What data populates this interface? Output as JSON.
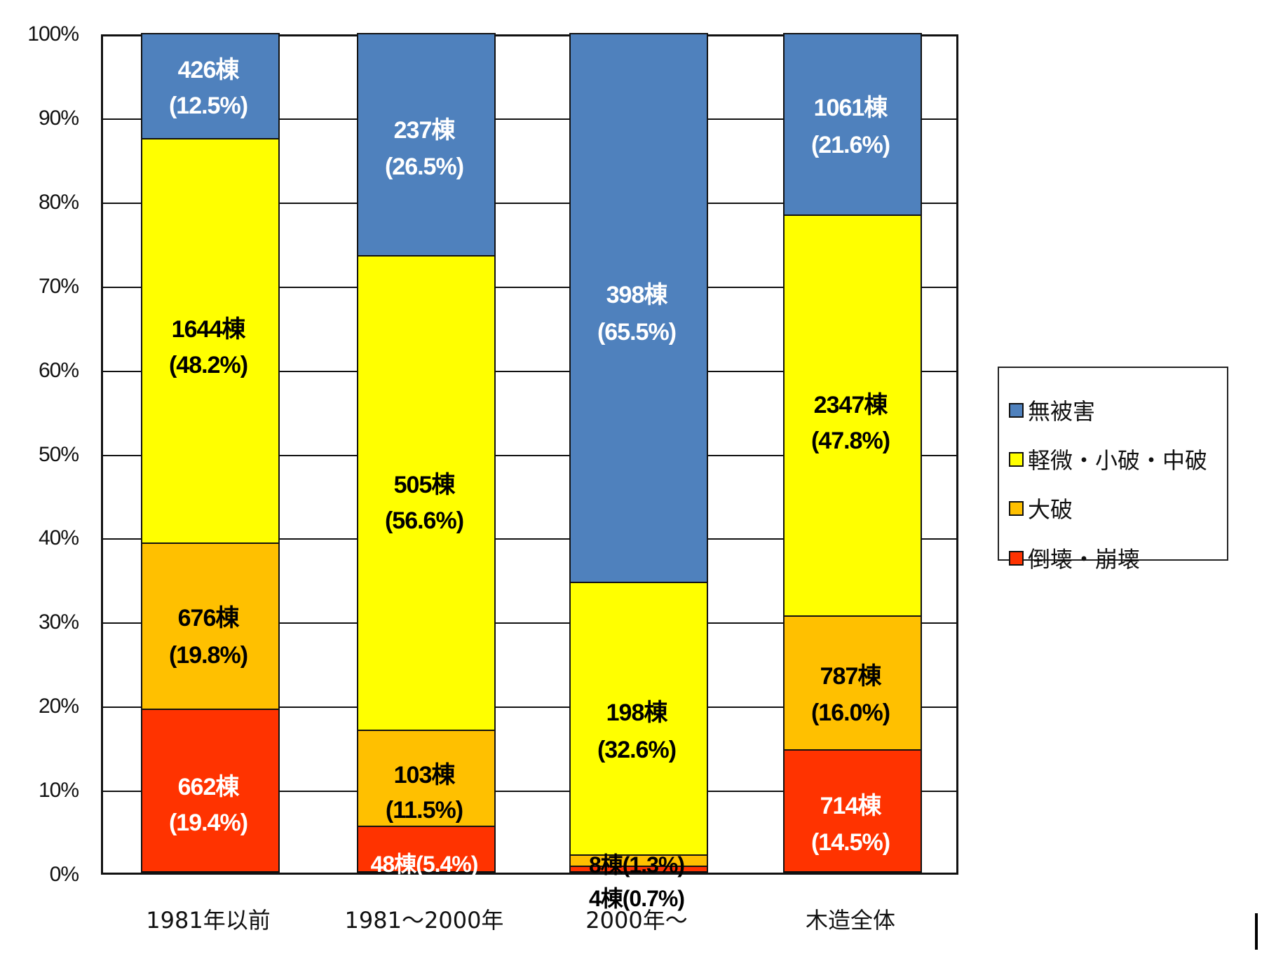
{
  "chart_data": {
    "type": "bar",
    "stacked": true,
    "normalized_percent": true,
    "title": "",
    "xlabel": "",
    "ylabel": "",
    "ylim": [
      0,
      100
    ],
    "y_ticks": [
      "0%",
      "10%",
      "20%",
      "30%",
      "40%",
      "50%",
      "60%",
      "70%",
      "80%",
      "90%",
      "100%"
    ],
    "grid": true,
    "legend_position": "right",
    "categories": [
      "1981年以前",
      "1981～2000年",
      "2000年～",
      "木造全体"
    ],
    "series": [
      {
        "name": "倒壊・崩壊",
        "color": "#FF3300",
        "counts": [
          662,
          48,
          4,
          714
        ],
        "percent": [
          19.4,
          5.4,
          0.7,
          14.5
        ],
        "labels": [
          "662棟",
          "48棟",
          "4棟",
          "714棟"
        ],
        "pct_labels": [
          "(19.4%)",
          "(5.4%)",
          "(0.7%)",
          "(14.5%)"
        ]
      },
      {
        "name": "大破",
        "color": "#FFC000",
        "counts": [
          676,
          103,
          8,
          787
        ],
        "percent": [
          19.8,
          11.5,
          1.3,
          16.0
        ],
        "labels": [
          "676棟",
          "103棟",
          "8棟",
          "787棟"
        ],
        "pct_labels": [
          "(19.8%)",
          "(11.5%)",
          "(1.3%)",
          "(16.0%)"
        ]
      },
      {
        "name": "軽微・小破・中破",
        "color": "#FFFF00",
        "counts": [
          1644,
          505,
          198,
          2347
        ],
        "percent": [
          48.2,
          56.6,
          32.6,
          47.8
        ],
        "labels": [
          "1644棟",
          "505棟",
          "198棟",
          "2347棟"
        ],
        "pct_labels": [
          "(48.2%)",
          "(56.6%)",
          "(32.6%)",
          "(47.8%)"
        ]
      },
      {
        "name": "無被害",
        "color": "#4F81BD",
        "counts": [
          426,
          237,
          398,
          1061
        ],
        "percent": [
          12.5,
          26.5,
          65.5,
          21.6
        ],
        "labels": [
          "426棟",
          "237棟",
          "398棟",
          "1061棟"
        ],
        "pct_labels": [
          "(12.5%)",
          "(26.5%)",
          "(65.5%)",
          "(21.6%)"
        ]
      }
    ],
    "legend": [
      "無被害",
      "軽微・小破・中破",
      "大破",
      "倒壊・崩壊"
    ]
  },
  "colors": {
    "no_damage": "#4F81BD",
    "minor": "#FFFF00",
    "major": "#FFC000",
    "collapse": "#FF3300"
  }
}
